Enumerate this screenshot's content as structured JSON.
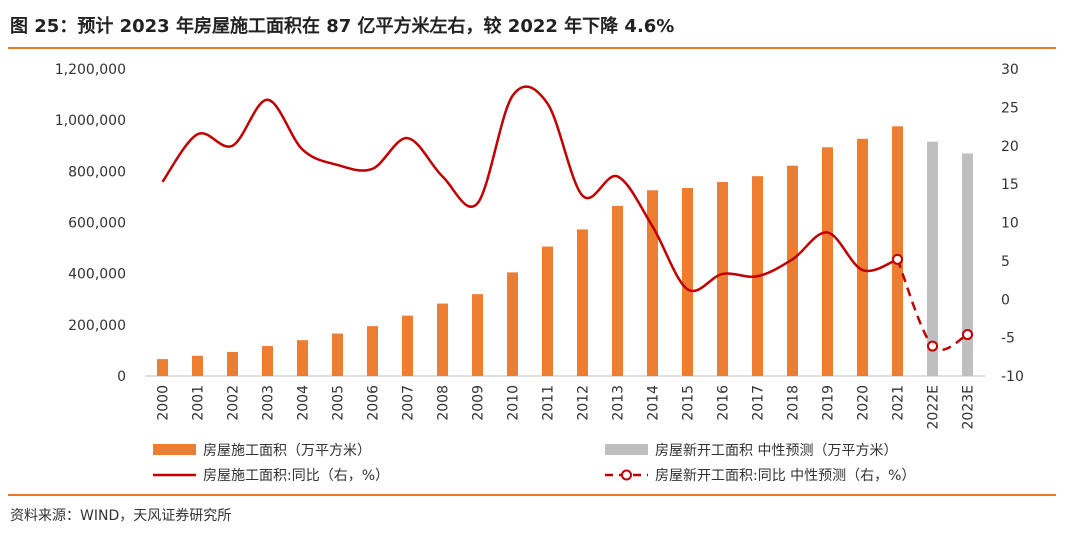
{
  "title": "图 25：预计 2023 年房屋施工面积在 87 亿平方米左右，较 2022 年下降 4.6%",
  "source": "资料来源：WIND，天风证券研究所",
  "chart_data": {
    "type": "bar+line",
    "categories": [
      "2000",
      "2001",
      "2002",
      "2003",
      "2004",
      "2005",
      "2006",
      "2007",
      "2008",
      "2009",
      "2010",
      "2011",
      "2012",
      "2013",
      "2014",
      "2015",
      "2016",
      "2017",
      "2018",
      "2019",
      "2020",
      "2021",
      "2022E",
      "2023E"
    ],
    "left_axis": {
      "min": 0,
      "max": 1200000,
      "step": 200000,
      "ticks": [
        "0",
        "200,000",
        "400,000",
        "600,000",
        "800,000",
        "1,000,000",
        "1,200,000"
      ]
    },
    "right_axis": {
      "min": -10,
      "max": 30,
      "step": 5,
      "ticks": [
        "-10",
        "-5",
        "0",
        "5",
        "10",
        "15",
        "20",
        "25",
        "30"
      ]
    },
    "series": [
      {
        "name": "房屋施工面积（万平方米）",
        "kind": "bar",
        "axis": "left",
        "color": "#ed7d31",
        "values": [
          66000,
          79000,
          94000,
          117000,
          140000,
          166000,
          195000,
          236000,
          283000,
          320000,
          405000,
          506000,
          573000,
          665000,
          726000,
          735000,
          758000,
          781000,
          822000,
          894000,
          927000,
          976000,
          null,
          null
        ]
      },
      {
        "name": "房屋新开工面积 中性预测（万平方米）",
        "kind": "bar",
        "axis": "left",
        "color": "#bfbfbf",
        "values": [
          null,
          null,
          null,
          null,
          null,
          null,
          null,
          null,
          null,
          null,
          null,
          null,
          null,
          null,
          null,
          null,
          null,
          null,
          null,
          null,
          null,
          null,
          916000,
          870000
        ]
      },
      {
        "name": "房屋施工面积:同比（右，%）",
        "kind": "line",
        "axis": "right",
        "color": "#c00000",
        "values": [
          15.3,
          21.5,
          20.0,
          26.0,
          19.5,
          17.5,
          17.0,
          21.0,
          16.0,
          12.5,
          26.5,
          25.5,
          13.5,
          16.0,
          9.5,
          1.3,
          3.3,
          3.0,
          5.2,
          8.7,
          3.8,
          5.2,
          null,
          null
        ]
      },
      {
        "name": "房屋新开工面积:同比 中性预测（右，%）",
        "kind": "dashed-line",
        "axis": "right",
        "color": "#c00000",
        "values": [
          null,
          null,
          null,
          null,
          null,
          null,
          null,
          null,
          null,
          null,
          null,
          null,
          null,
          null,
          null,
          null,
          null,
          null,
          null,
          null,
          null,
          5.2,
          -6.1,
          -4.6
        ]
      }
    ],
    "legend_position": "bottom"
  }
}
